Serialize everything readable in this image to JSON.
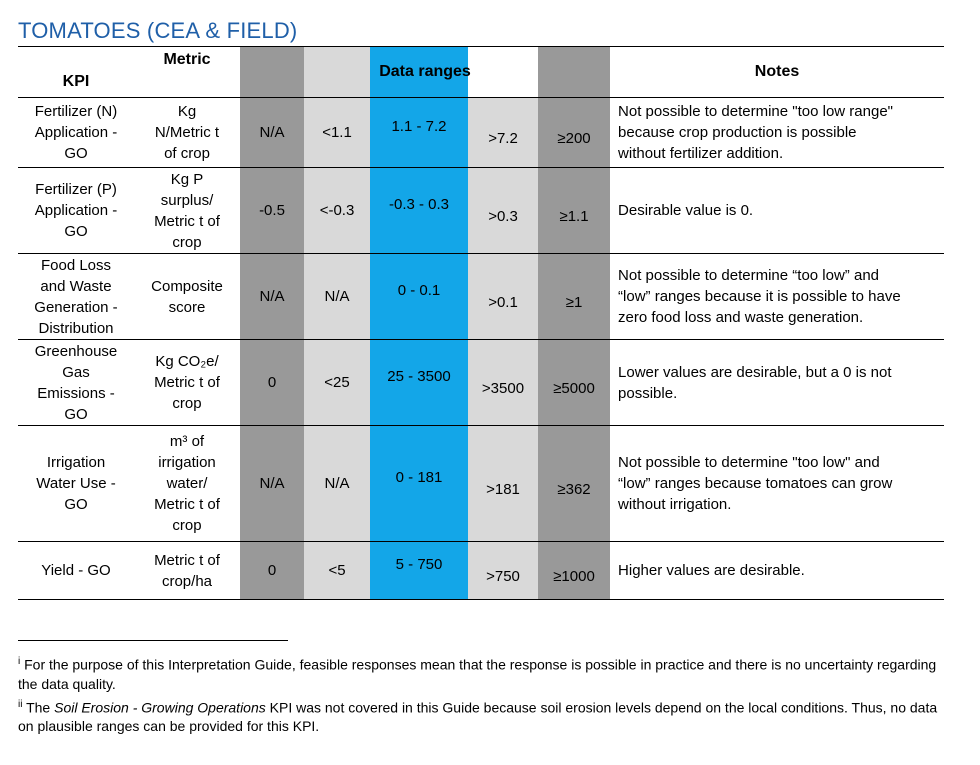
{
  "title": "TOMATOES (CEA & FIELD)",
  "colors": {
    "dark": "#999999",
    "light": "#d9d9d9",
    "blue": "#13a6e8"
  },
  "headers": {
    "kpi": "KPI",
    "metric": "Metric",
    "ranges": "Data ranges",
    "notes": "Notes"
  },
  "rows": [
    {
      "kpi": [
        "Fertilizer (N)",
        "Application -",
        "GO"
      ],
      "metric": [
        "Kg",
        "N/Metric t",
        "of crop"
      ],
      "ranges": [
        "N/A",
        "<1.1",
        "1.1 - 7.2",
        ">7.2",
        "≥200"
      ],
      "notes": [
        "Not possible to determine \"too low range\"",
        "because crop production is possible",
        "without fertilizer addition."
      ]
    },
    {
      "kpi": [
        "Fertilizer (P)",
        "Application -",
        "GO"
      ],
      "metric": [
        "Kg P",
        "surplus/",
        "Metric t of",
        "crop"
      ],
      "ranges": [
        "-0.5",
        "<-0.3",
        "-0.3 - 0.3",
        ">0.3",
        "≥1.1"
      ],
      "notes": [
        "Desirable value is 0."
      ]
    },
    {
      "kpi": [
        "Food Loss",
        "and Waste",
        "Generation -",
        "Distribution"
      ],
      "metric": [
        "Composite",
        "score"
      ],
      "ranges": [
        "N/A",
        "N/A",
        "0 - 0.1",
        ">0.1",
        "≥1"
      ],
      "notes": [
        "Not possible to determine “too low” and",
        "“low” ranges because it is possible to have",
        "zero food loss and waste generation."
      ]
    },
    {
      "kpi": [
        "Greenhouse",
        "Gas",
        "Emissions -",
        "GO"
      ],
      "metric": [
        "Kg CO₂e/",
        "Metric t of",
        "crop"
      ],
      "ranges": [
        "0",
        "<25",
        "25 - 3500",
        ">3500",
        "≥5000"
      ],
      "notes": [
        "Lower values are desirable, but a 0 is not",
        "possible."
      ]
    },
    {
      "kpi": [
        "Irrigation",
        "Water Use -",
        "GO"
      ],
      "metric": [
        "m³ of",
        "irrigation",
        "water/",
        "Metric t of",
        "crop"
      ],
      "ranges": [
        "N/A",
        "N/A",
        "0 - 181",
        ">181",
        "≥362"
      ],
      "notes": [
        "Not possible to determine \"too low\" and",
        "“low” ranges because tomatoes can grow",
        "without irrigation."
      ]
    },
    {
      "kpi": [
        "Yield - GO"
      ],
      "metric": [
        "Metric t of",
        "crop/ha"
      ],
      "ranges": [
        "0",
        "<5",
        "5 - 750",
        ">750",
        "≥1000"
      ],
      "notes": [
        "Higher values are desirable."
      ]
    }
  ],
  "footnotes": [
    {
      "marker": "i",
      "pre": "For the purpose of this Interpretation Guide, feasible responses mean that the response is possible in practice and there is no uncertainty regarding the data quality.",
      "italic": "",
      "post": ""
    },
    {
      "marker": "ii",
      "pre": "The ",
      "italic": "Soil Erosion - Growing Operations",
      "post": " KPI was not covered in this Guide because soil erosion levels depend on the local conditions. Thus, no data on plausible ranges can be provided for this KPI."
    }
  ]
}
